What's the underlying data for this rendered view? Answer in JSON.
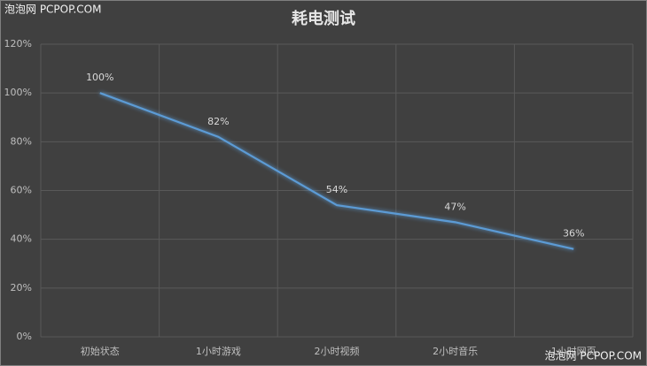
{
  "chart_data": {
    "type": "line",
    "title": "耗电测试",
    "categories": [
      "初始状态",
      "1小时游戏",
      "2小时视频",
      "2小时音乐",
      "1小时网页"
    ],
    "series": [
      {
        "color": "#5b9bd5",
        "values": [
          100,
          82,
          54,
          47,
          36
        ],
        "value_labels": [
          "100%",
          "82%",
          "54%",
          "47%",
          "36%"
        ]
      }
    ],
    "ylim": [
      0,
      120
    ],
    "yticks": [
      {
        "value": 0,
        "label": "0%"
      },
      {
        "value": 20,
        "label": "20%"
      },
      {
        "value": 40,
        "label": "40%"
      },
      {
        "value": 60,
        "label": "60%"
      },
      {
        "value": 80,
        "label": "80%"
      },
      {
        "value": 100,
        "label": "100%"
      },
      {
        "value": 120,
        "label": "120%"
      }
    ],
    "grid": true
  },
  "watermarks": [
    "泡泡网 PCPOP.COM",
    "泡泡网 PCPOP.COM"
  ]
}
